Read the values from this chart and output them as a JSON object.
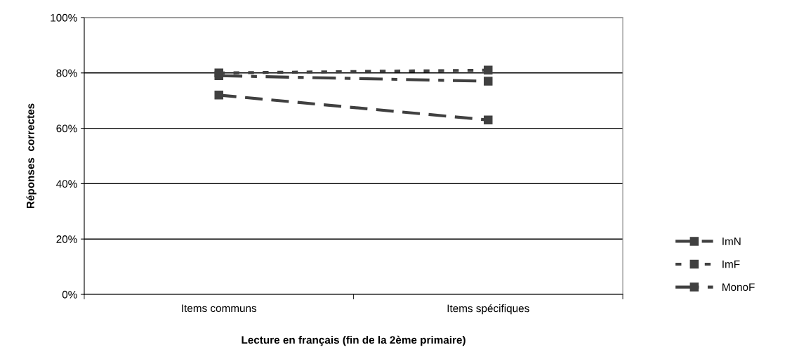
{
  "chart_data": {
    "type": "line",
    "xlabel": "Lecture en français (fin de la 2ème primaire)",
    "ylabel": "Réponses  correctes",
    "categories": [
      "Items communs",
      "Items spécifiques"
    ],
    "series": [
      {
        "name": "ImN",
        "color": "#404040",
        "values": [
          72,
          63
        ],
        "line_style": "dashed"
      },
      {
        "name": "ImF",
        "color": "#404040",
        "values": [
          80,
          81
        ],
        "line_style": "dotted"
      },
      {
        "name": "MonoF",
        "color": "#404040",
        "values": [
          79,
          77
        ],
        "line_style": "dashdot"
      }
    ],
    "ylim": [
      0,
      100
    ],
    "yticks": [
      {
        "value": 0,
        "label": "0%"
      },
      {
        "value": 20,
        "label": "20%"
      },
      {
        "value": 40,
        "label": "40%"
      },
      {
        "value": 60,
        "label": "60%"
      },
      {
        "value": 80,
        "label": "80%"
      },
      {
        "value": 100,
        "label": "100%"
      }
    ],
    "grid": "y",
    "legend": "right",
    "marker": "square"
  }
}
